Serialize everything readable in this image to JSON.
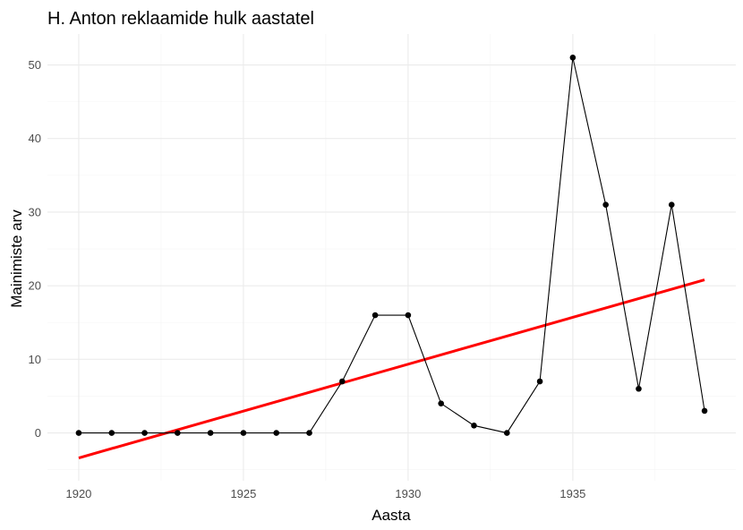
{
  "chart_data": {
    "type": "line",
    "title": "H. Anton reklaamide hulk aastatel",
    "xlabel": "Aasta",
    "ylabel": "Mainimiste arv",
    "x": [
      1920,
      1921,
      1922,
      1923,
      1924,
      1925,
      1926,
      1927,
      1928,
      1929,
      1930,
      1931,
      1932,
      1933,
      1934,
      1935,
      1936,
      1937,
      1938,
      1939
    ],
    "series": [
      {
        "values": [
          0,
          0,
          0,
          0,
          0,
          0,
          0,
          0,
          7,
          16,
          16,
          4,
          1,
          0,
          7,
          51,
          31,
          6,
          31,
          3
        ],
        "color": "#000000",
        "marker": "point"
      }
    ],
    "trend_line": {
      "type": "linear",
      "color": "#ff0000",
      "x": [
        1920,
        1939
      ],
      "y": [
        -3.4,
        20.8
      ]
    },
    "x_ticks": [
      "1920",
      "1925",
      "1930",
      "1935"
    ],
    "y_ticks": [
      "0",
      "10",
      "20",
      "30",
      "40",
      "50"
    ],
    "xlim": [
      1919.05,
      1939.95
    ],
    "ylim": [
      -6.5,
      54.2
    ],
    "grid": true,
    "legend": "none"
  }
}
